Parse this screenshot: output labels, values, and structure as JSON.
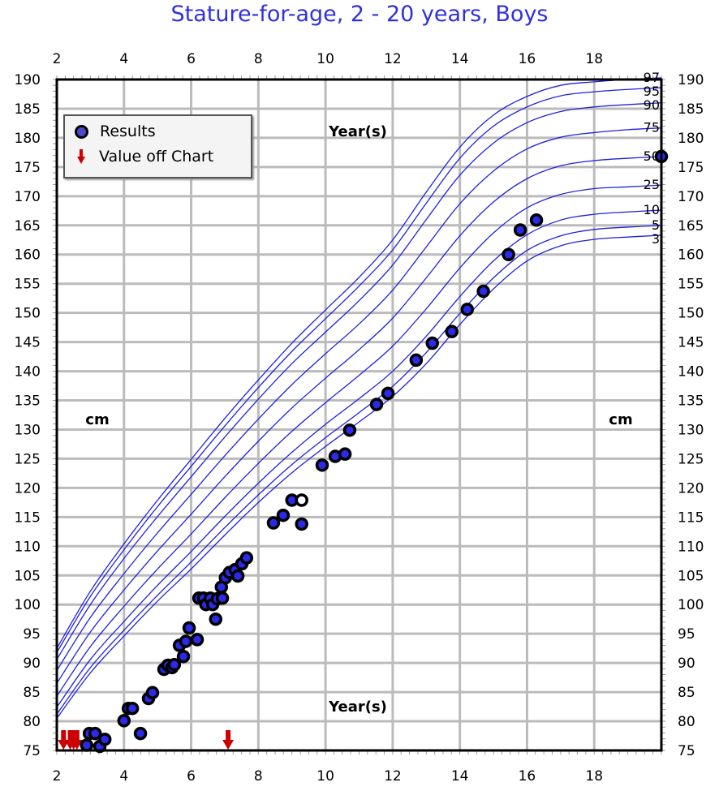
{
  "title": "Stature-for-age, 2 - 20 years, Boys",
  "legend": {
    "results": "Results",
    "off_chart": "Value off Chart"
  },
  "colors": {
    "title": "#3030e0",
    "curves": "#2020e0",
    "point_fill": "#2a2ae8",
    "off_chart": "#cc0000",
    "grid": "#bbbbbb"
  },
  "chart_data": {
    "type": "line",
    "title": "Stature-for-age, 2 - 20 years, Boys",
    "xlabel": "Year(s)",
    "ylabel": "cm",
    "xlim": [
      2,
      20
    ],
    "ylim": [
      75,
      190
    ],
    "x_ticks": [
      2,
      4,
      6,
      8,
      10,
      12,
      14,
      16,
      18
    ],
    "y_ticks": [
      75,
      80,
      85,
      90,
      95,
      100,
      105,
      110,
      115,
      120,
      125,
      130,
      135,
      140,
      145,
      150,
      155,
      160,
      165,
      170,
      175,
      180,
      185,
      190
    ],
    "grid": true,
    "legend_position": "top-left",
    "percentile_ages": [
      2,
      3,
      4,
      5,
      6,
      7,
      8,
      9,
      10,
      11,
      12,
      13,
      14,
      15,
      16,
      17,
      18,
      19,
      20
    ],
    "percentiles": [
      {
        "name": "3",
        "values": [
          80.5,
          88.3,
          94.6,
          100.6,
          106.1,
          111.9,
          117.5,
          122.6,
          127.1,
          131.3,
          135.7,
          141.3,
          148.0,
          154.1,
          158.9,
          161.5,
          162.6,
          163.0,
          163.3
        ]
      },
      {
        "name": "5",
        "values": [
          81.2,
          89.2,
          95.6,
          101.6,
          107.3,
          113.2,
          118.8,
          124.0,
          128.6,
          132.9,
          137.4,
          143.2,
          149.9,
          156.0,
          160.7,
          163.2,
          164.3,
          164.7,
          165.0
        ]
      },
      {
        "name": "10",
        "values": [
          82.4,
          90.6,
          97.1,
          103.3,
          109.1,
          115.1,
          120.8,
          126.1,
          130.9,
          135.3,
          140.0,
          146.0,
          152.8,
          158.9,
          163.4,
          165.9,
          166.9,
          167.3,
          167.6
        ]
      },
      {
        "name": "25",
        "values": [
          84.3,
          92.8,
          99.7,
          106.1,
          112.1,
          118.3,
          124.2,
          129.7,
          134.6,
          139.3,
          144.3,
          150.7,
          157.7,
          163.7,
          168.0,
          170.3,
          171.3,
          171.6,
          171.9
        ]
      },
      {
        "name": "50",
        "values": [
          86.5,
          95.3,
          102.5,
          109.2,
          115.5,
          121.9,
          128.0,
          133.7,
          138.8,
          143.7,
          149.1,
          156.0,
          163.2,
          169.0,
          173.0,
          175.2,
          176.1,
          176.5,
          176.8
        ]
      },
      {
        "name": "75",
        "values": [
          88.7,
          97.8,
          105.3,
          112.3,
          118.9,
          125.5,
          131.8,
          137.7,
          143.0,
          148.1,
          153.9,
          161.3,
          168.7,
          174.3,
          178.1,
          180.1,
          180.9,
          181.4,
          181.7
        ]
      },
      {
        "name": "90",
        "values": [
          90.6,
          100.0,
          107.9,
          115.1,
          121.9,
          128.7,
          135.2,
          141.3,
          146.7,
          152.1,
          158.2,
          166.0,
          173.6,
          179.1,
          182.6,
          184.5,
          185.3,
          185.7,
          186.0
        ]
      },
      {
        "name": "95",
        "values": [
          91.8,
          101.4,
          109.4,
          116.8,
          123.7,
          130.6,
          137.2,
          143.4,
          149.0,
          154.6,
          160.8,
          168.8,
          176.5,
          182.0,
          185.3,
          187.2,
          187.9,
          188.3,
          188.6
        ]
      },
      {
        "name": "97",
        "values": [
          92.5,
          102.3,
          110.4,
          117.9,
          124.9,
          131.9,
          138.5,
          144.8,
          150.5,
          156.1,
          162.5,
          170.7,
          178.4,
          183.9,
          187.1,
          189.0,
          189.6,
          190.0,
          190.3
        ]
      }
    ],
    "results": [
      [
        2.89,
        75.9
      ],
      [
        2.97,
        77.9
      ],
      [
        3.14,
        77.9
      ],
      [
        3.28,
        75.7
      ],
      [
        3.43,
        76.9
      ],
      [
        4.0,
        80.1
      ],
      [
        4.13,
        82.2
      ],
      [
        4.25,
        82.2
      ],
      [
        4.49,
        77.9
      ],
      [
        4.73,
        83.9
      ],
      [
        4.85,
        84.9
      ],
      [
        5.19,
        88.9
      ],
      [
        5.31,
        89.6
      ],
      [
        5.43,
        89.2
      ],
      [
        5.5,
        89.7
      ],
      [
        5.65,
        93.0
      ],
      [
        5.77,
        91.1
      ],
      [
        5.84,
        93.7
      ],
      [
        5.94,
        96.0
      ],
      [
        6.18,
        94.0
      ],
      [
        6.23,
        101.1
      ],
      [
        6.37,
        101.1
      ],
      [
        6.44,
        100.0
      ],
      [
        6.57,
        101.1
      ],
      [
        6.64,
        100.0
      ],
      [
        6.73,
        97.5
      ],
      [
        6.78,
        101.0
      ],
      [
        6.9,
        103.0
      ],
      [
        6.93,
        101.1
      ],
      [
        7.02,
        104.6
      ],
      [
        7.14,
        105.5
      ],
      [
        7.31,
        106.0
      ],
      [
        7.39,
        104.9
      ],
      [
        7.51,
        107.0
      ],
      [
        7.65,
        108.0
      ],
      [
        8.45,
        114.0
      ],
      [
        8.74,
        115.3
      ],
      [
        9.0,
        117.9
      ],
      [
        9.29,
        113.8
      ],
      [
        9.9,
        123.9
      ],
      [
        10.29,
        125.4
      ],
      [
        10.58,
        125.8
      ],
      [
        10.72,
        129.9
      ],
      [
        11.52,
        134.3
      ],
      [
        11.86,
        136.2
      ],
      [
        12.7,
        141.9
      ],
      [
        13.18,
        144.8
      ],
      [
        13.76,
        146.8
      ],
      [
        14.22,
        150.6
      ],
      [
        14.7,
        153.7
      ],
      [
        15.45,
        160.0
      ],
      [
        15.8,
        164.2
      ],
      [
        16.28,
        165.9
      ],
      [
        20.0,
        176.8
      ]
    ],
    "hollow_results": [
      [
        9.29,
        117.9
      ]
    ],
    "off_chart_ages": [
      2.2,
      2.4,
      2.5,
      2.6,
      7.1
    ]
  }
}
